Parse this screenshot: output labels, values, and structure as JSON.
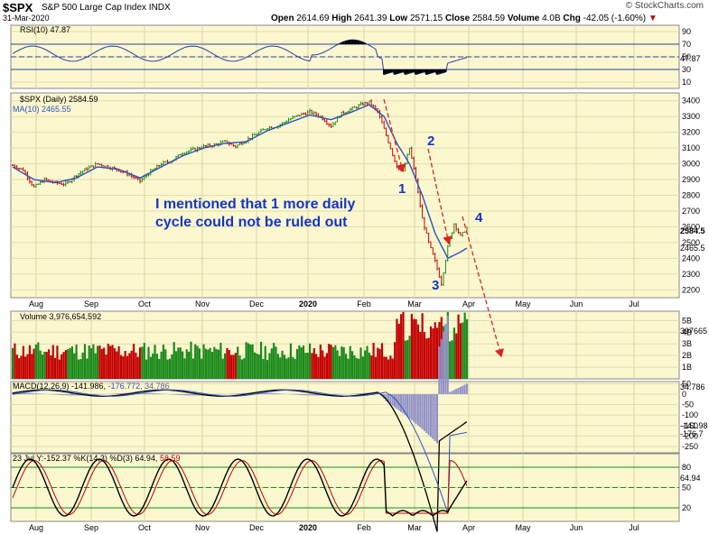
{
  "header": {
    "symbol": "$SPX",
    "name": "S&P 500 Large Cap Index",
    "exchange": "INDX",
    "date": "31-Mar-2020",
    "open_label": "Open",
    "open": "2614.69",
    "high_label": "High",
    "high": "2641.39",
    "low_label": "Low",
    "low": "2571.15",
    "close_label": "Close",
    "close": "2584.59",
    "volume_label": "Volume",
    "volume": "4.0B",
    "chg_label": "Chg",
    "chg": "-42.05 (-1.60%)",
    "chg_arrow": "▼",
    "copyright": "© StockCharts.com"
  },
  "colors": {
    "panel_bg": "#fbf8d0",
    "up": "#1a8a1a",
    "down": "#c40000",
    "ma": "#3050c0",
    "rsi": "#2b3fa8",
    "annot": "#1535c8",
    "arrow": "#e02020"
  },
  "months": [
    "Aug",
    "Sep",
    "Oct",
    "Nov",
    "Dec",
    "2020",
    "Feb",
    "Mar",
    "Apr",
    "May",
    "Jun",
    "Jul"
  ],
  "rsi": {
    "legend": "RSI(10) 47.87",
    "ticks": [
      "90",
      "70",
      "50",
      "30",
      "10"
    ],
    "last": "47.87",
    "ylim": [
      0,
      100
    ]
  },
  "price": {
    "legend": "$SPX (Daily) 2584.59",
    "ma_legend": "MA(10) 2465.55",
    "ticks": [
      "3400",
      "3300",
      "3200",
      "3100",
      "3000",
      "2900",
      "2800",
      "2700",
      "2600",
      "2500",
      "2400",
      "2300",
      "2200"
    ],
    "last_price": "2584.5",
    "last_ma": "2465.5",
    "ylim": [
      2150,
      3450
    ]
  },
  "volume": {
    "legend": "Volume 3,976,654,592",
    "ticks": [
      "5B",
      "4B",
      "3B",
      "2B",
      "1B"
    ],
    "last": "397665"
  },
  "macd": {
    "legend_main": "MACD(12,26,9) -141.986,",
    "legend_signal": "-176.772,",
    "legend_hist": "34.786",
    "ticks": [
      "50",
      "0",
      "-50",
      "-100",
      "-150",
      "-200",
      "-250"
    ],
    "last_hist": "34.786",
    "last_main": "-141.98",
    "last_signal": "-176.7"
  },
  "stoch": {
    "legend_prefix": "23 Jul Y:-152.37",
    "legend_main": "%K(14,3) %D(3) 64.94,",
    "legend_d": "58.59",
    "ticks": [
      "80",
      "50",
      "20"
    ],
    "last": "64.94"
  },
  "annotations": {
    "note_line1": "I mentioned that 1 more daily",
    "note_line2": "cycle could not be ruled out",
    "wave1": "1",
    "wave2": "2",
    "wave3": "3",
    "wave4": "4"
  },
  "chart_data": {
    "type": "line",
    "title": "$SPX S&P 500 Large Cap Index INDX",
    "x_range": [
      "2019-08",
      "2020-07"
    ],
    "series": [
      {
        "name": "$SPX (Daily)",
        "points": [
          [
            0,
            2990
          ],
          [
            5,
            2960
          ],
          [
            10,
            2850
          ],
          [
            15,
            2900
          ],
          [
            20,
            2880
          ],
          [
            25,
            2870
          ],
          [
            30,
            2930
          ],
          [
            35,
            2970
          ],
          [
            40,
            3000
          ],
          [
            45,
            2980
          ],
          [
            50,
            2960
          ],
          [
            55,
            2930
          ],
          [
            60,
            2890
          ],
          [
            65,
            2950
          ],
          [
            70,
            3000
          ],
          [
            75,
            3020
          ],
          [
            80,
            3070
          ],
          [
            85,
            3090
          ],
          [
            90,
            3110
          ],
          [
            95,
            3120
          ],
          [
            100,
            3140
          ],
          [
            105,
            3110
          ],
          [
            110,
            3150
          ],
          [
            115,
            3190
          ],
          [
            120,
            3230
          ],
          [
            125,
            3240
          ],
          [
            130,
            3280
          ],
          [
            135,
            3310
          ],
          [
            140,
            3330
          ],
          [
            145,
            3300
          ],
          [
            150,
            3240
          ],
          [
            155,
            3320
          ],
          [
            160,
            3350
          ],
          [
            165,
            3380
          ],
          [
            168,
            3390
          ],
          [
            172,
            3330
          ],
          [
            175,
            3220
          ],
          [
            178,
            3100
          ],
          [
            181,
            2980
          ],
          [
            184,
            2950
          ],
          [
            187,
            3100
          ],
          [
            190,
            2900
          ],
          [
            193,
            2650
          ],
          [
            196,
            2500
          ],
          [
            199,
            2380
          ],
          [
            202,
            2240
          ],
          [
            205,
            2470
          ],
          [
            208,
            2620
          ],
          [
            211,
            2540
          ],
          [
            214,
            2590
          ]
        ]
      },
      {
        "name": "MA(10)",
        "points": [
          [
            0,
            2980
          ],
          [
            10,
            2900
          ],
          [
            20,
            2880
          ],
          [
            30,
            2910
          ],
          [
            40,
            2980
          ],
          [
            50,
            2965
          ],
          [
            60,
            2910
          ],
          [
            70,
            2980
          ],
          [
            80,
            3050
          ],
          [
            90,
            3100
          ],
          [
            100,
            3130
          ],
          [
            110,
            3140
          ],
          [
            120,
            3210
          ],
          [
            130,
            3260
          ],
          [
            140,
            3310
          ],
          [
            150,
            3280
          ],
          [
            160,
            3330
          ],
          [
            168,
            3375
          ],
          [
            175,
            3300
          ],
          [
            181,
            3130
          ],
          [
            187,
            3000
          ],
          [
            193,
            2800
          ],
          [
            199,
            2560
          ],
          [
            205,
            2400
          ],
          [
            211,
            2440
          ],
          [
            214,
            2465
          ]
        ]
      }
    ],
    "ylabel": "",
    "ylim": [
      2150,
      3450
    ]
  }
}
